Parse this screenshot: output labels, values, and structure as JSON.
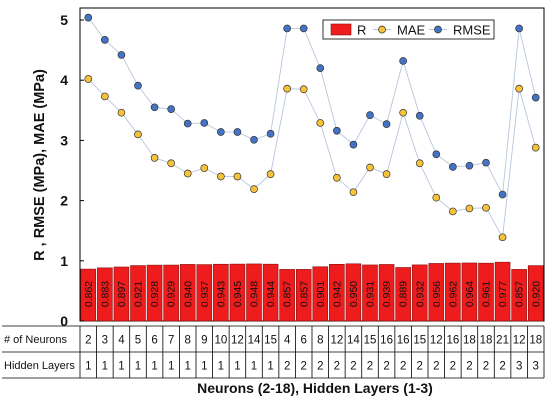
{
  "chart_data": {
    "type": "bar",
    "title": "",
    "xlabel": "Neurons (2-18), Hidden Layers (1-3)",
    "ylabel": "R , RMSE (MPa), MAE (MPa)",
    "ylim": [
      0,
      5
    ],
    "yticks": [
      "0",
      "1",
      "2",
      "3",
      "4",
      "5"
    ],
    "legend": {
      "position": "top-right",
      "entries": [
        "R",
        "MAE",
        "RMSE"
      ]
    },
    "colors": {
      "R": "#ee1c1c",
      "MAE": "#f6c23a",
      "RMSE": "#4472c4",
      "line": "#b8c6dc"
    },
    "table": {
      "row_labels": [
        "# of  Neurons",
        "Hidden Layers"
      ],
      "neurons": [
        "2",
        "3",
        "4",
        "5",
        "6",
        "7",
        "8",
        "9",
        "10",
        "12",
        "14",
        "15",
        "4",
        "6",
        "8",
        "12",
        "14",
        "15",
        "16",
        "16",
        "15",
        "12",
        "16",
        "18",
        "18",
        "21",
        "12",
        "18"
      ],
      "hidden_layers": [
        "1",
        "1",
        "1",
        "1",
        "1",
        "1",
        "1",
        "1",
        "1",
        "1",
        "1",
        "1",
        "2",
        "2",
        "2",
        "2",
        "2",
        "2",
        "2",
        "2",
        "2",
        "2",
        "2",
        "2",
        "2",
        "2",
        "3",
        "3"
      ]
    },
    "series": [
      {
        "name": "R",
        "type": "bar",
        "values": [
          0.862,
          0.883,
          0.897,
          0.921,
          0.928,
          0.929,
          0.94,
          0.937,
          0.943,
          0.945,
          0.948,
          0.944,
          0.857,
          0.857,
          0.901,
          0.942,
          0.95,
          0.931,
          0.939,
          0.889,
          0.932,
          0.956,
          0.962,
          0.964,
          0.961,
          0.977,
          0.857,
          0.92
        ],
        "labels": [
          "0.862",
          "0.883",
          "0.897",
          "0.921",
          "0.928",
          "0.929",
          "0.940",
          "0.937",
          "0.943",
          "0.945",
          "0.948",
          "0.944",
          "0.857",
          "0.857",
          "0.901",
          "0.942",
          "0.950",
          "0.931",
          "0.939",
          "0.889",
          "0.932",
          "0.956",
          "0.962",
          "0.964",
          "0.961",
          "0.977",
          "0.857",
          "0.920"
        ]
      },
      {
        "name": "MAE",
        "type": "line",
        "values": [
          4.02,
          3.73,
          3.46,
          3.1,
          2.71,
          2.62,
          2.45,
          2.54,
          2.4,
          2.4,
          2.19,
          2.44,
          3.86,
          3.85,
          3.29,
          2.38,
          2.14,
          2.55,
          2.44,
          3.46,
          2.62,
          2.05,
          1.82,
          1.87,
          1.88,
          1.39,
          3.86,
          2.88
        ]
      },
      {
        "name": "RMSE",
        "type": "line",
        "values": [
          5.04,
          4.67,
          4.42,
          3.91,
          3.55,
          3.52,
          3.28,
          3.29,
          3.14,
          3.14,
          3.01,
          3.11,
          4.86,
          4.86,
          4.2,
          3.16,
          2.93,
          3.42,
          3.27,
          4.32,
          3.41,
          2.77,
          2.56,
          2.58,
          2.63,
          2.1,
          4.86,
          3.71
        ]
      }
    ]
  }
}
